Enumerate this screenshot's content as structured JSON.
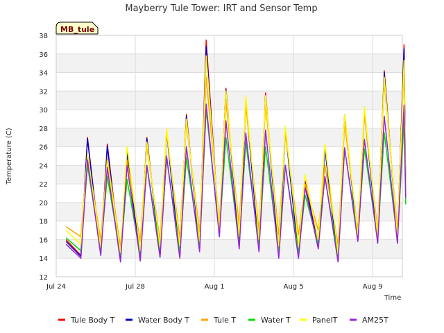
{
  "chart_data": {
    "type": "line",
    "title": "Mayberry Tule Tower: IRT and Sensor Temp",
    "site_label": "MB_tule",
    "xlabel": "Time",
    "ylabel": "Temperature (C)",
    "ylim": [
      12,
      38
    ],
    "yticks": [
      12,
      14,
      16,
      18,
      20,
      22,
      24,
      26,
      28,
      30,
      32,
      34,
      36,
      38
    ],
    "xlim": [
      "2024-07-24",
      "2024-08-10 12:00"
    ],
    "xticks": [
      {
        "label": "Jul 24",
        "date": "2024-07-24"
      },
      {
        "label": "Jul 28",
        "date": "2024-07-28"
      },
      {
        "label": "Aug 1",
        "date": "2024-08-01"
      },
      {
        "label": "Aug 5",
        "date": "2024-08-05"
      },
      {
        "label": "Aug 9",
        "date": "2024-08-09"
      }
    ],
    "grid": true,
    "legend_position": "bottom",
    "x_dates": [
      "2024-07-24 12:00",
      "2024-07-25 06:00",
      "2024-07-25 14:00",
      "2024-07-26 06:00",
      "2024-07-26 14:00",
      "2024-07-27 06:00",
      "2024-07-27 14:00",
      "2024-07-28 06:00",
      "2024-07-28 14:00",
      "2024-07-29 06:00",
      "2024-07-29 14:00",
      "2024-07-30 06:00",
      "2024-07-30 14:00",
      "2024-07-31 06:00",
      "2024-07-31 14:00",
      "2024-08-01 06:00",
      "2024-08-01 14:00",
      "2024-08-02 06:00",
      "2024-08-02 14:00",
      "2024-08-03 06:00",
      "2024-08-03 14:00",
      "2024-08-04 06:00",
      "2024-08-04 14:00",
      "2024-08-05 06:00",
      "2024-08-05 14:00",
      "2024-08-06 06:00",
      "2024-08-06 14:00",
      "2024-08-07 06:00",
      "2024-08-07 14:00",
      "2024-08-08 06:00",
      "2024-08-08 14:00",
      "2024-08-09 06:00",
      "2024-08-09 14:00",
      "2024-08-10 06:00",
      "2024-08-10 14:00",
      "2024-08-10 16:00"
    ],
    "series": [
      {
        "name": "Tule Body T",
        "color": "#ff0000",
        "values": [
          16.0,
          14.3,
          27.0,
          14.5,
          26.3,
          13.8,
          25.5,
          13.9,
          27.0,
          14.3,
          27.8,
          14.2,
          29.5,
          15.0,
          37.5,
          16.5,
          32.3,
          15.3,
          31.2,
          15.0,
          31.8,
          14.3,
          28.0,
          14.3,
          22.3,
          15.3,
          26.0,
          13.8,
          29.5,
          16.0,
          30.0,
          15.8,
          34.2,
          15.8,
          37.0,
          20.8
        ]
      },
      {
        "name": "Water Body T",
        "color": "#0000cc",
        "values": [
          15.8,
          14.2,
          26.9,
          14.4,
          26.1,
          13.7,
          25.4,
          13.8,
          26.9,
          14.2,
          27.6,
          14.1,
          29.3,
          14.9,
          36.8,
          16.4,
          32.1,
          15.2,
          31.0,
          14.9,
          31.5,
          14.2,
          27.8,
          14.2,
          22.1,
          15.2,
          25.8,
          13.7,
          29.3,
          15.9,
          29.8,
          15.7,
          34.0,
          15.7,
          36.6,
          20.9
        ]
      },
      {
        "name": "Tule T",
        "color": "#ffa500",
        "values": [
          17.4,
          16.3,
          25.0,
          15.9,
          24.8,
          15.2,
          24.5,
          15.8,
          26.0,
          15.9,
          27.5,
          16.2,
          28.5,
          16.8,
          33.5,
          17.8,
          30.8,
          17.5,
          30.5,
          17.0,
          30.5,
          16.5,
          27.5,
          16.5,
          22.0,
          17.0,
          24.0,
          15.5,
          28.5,
          17.0,
          29.5,
          17.0,
          33.0,
          17.0,
          34.5,
          21.0
        ]
      },
      {
        "name": "Water T",
        "color": "#00dd00",
        "values": [
          16.2,
          14.8,
          24.0,
          14.9,
          22.8,
          14.3,
          22.5,
          14.3,
          24.0,
          14.8,
          24.8,
          14.6,
          24.8,
          15.4,
          30.0,
          16.6,
          27.0,
          15.5,
          26.5,
          15.3,
          26.0,
          14.6,
          24.0,
          14.6,
          20.8,
          15.5,
          22.8,
          14.2,
          25.8,
          16.3,
          25.8,
          16.0,
          27.5,
          16.0,
          28.8,
          19.8
        ]
      },
      {
        "name": "PanelT",
        "color": "#ffff00",
        "values": [
          17.0,
          15.5,
          25.3,
          15.2,
          24.5,
          14.6,
          26.0,
          14.8,
          26.5,
          15.2,
          28.0,
          15.3,
          29.0,
          15.8,
          35.8,
          17.0,
          32.0,
          16.3,
          31.5,
          16.0,
          31.5,
          15.3,
          28.2,
          15.3,
          23.0,
          16.0,
          26.3,
          14.5,
          29.5,
          16.5,
          30.3,
          16.3,
          33.5,
          16.3,
          35.3,
          20.5
        ]
      },
      {
        "name": "AM25T",
        "color": "#9922dd",
        "values": [
          15.5,
          14.0,
          24.6,
          14.3,
          23.8,
          13.6,
          24.0,
          13.7,
          24.0,
          14.1,
          25.0,
          14.0,
          26.0,
          14.7,
          30.6,
          16.3,
          28.8,
          15.0,
          27.5,
          14.7,
          27.8,
          14.0,
          24.0,
          14.0,
          21.6,
          15.0,
          22.8,
          13.6,
          25.9,
          15.8,
          26.8,
          15.6,
          29.3,
          15.6,
          30.5,
          20.5
        ]
      }
    ]
  }
}
